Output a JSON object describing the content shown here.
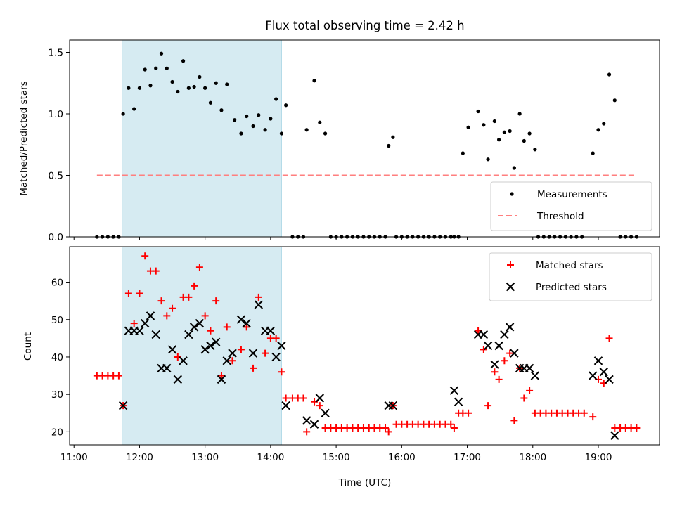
{
  "chart_data": [
    {
      "type": "scatter",
      "title": "Flux total observing time = 2.42 h",
      "xlabel": "",
      "ylabel": "Matched/Predicted stars",
      "xlim": [
        "10:56",
        "19:56"
      ],
      "ylim": [
        0,
        1.6
      ],
      "yticks": [
        "0.0",
        "0.5",
        "1.0",
        "1.5"
      ],
      "shaded_span": {
        "from": "11:44",
        "to": "14:10"
      },
      "legend_position": "lower right",
      "series": [
        {
          "name": "Measurements",
          "marker": "dot",
          "color": "#000000",
          "points": [
            [
              "11:21",
              0
            ],
            [
              "11:26",
              0
            ],
            [
              "11:31",
              0
            ],
            [
              "11:36",
              0
            ],
            [
              "11:41",
              0
            ],
            [
              "11:45",
              1.0
            ],
            [
              "11:50",
              1.21
            ],
            [
              "11:55",
              1.04
            ],
            [
              "12:00",
              1.21
            ],
            [
              "12:05",
              1.36
            ],
            [
              "12:10",
              1.23
            ],
            [
              "12:15",
              1.37
            ],
            [
              "12:20",
              1.49
            ],
            [
              "12:25",
              1.37
            ],
            [
              "12:30",
              1.26
            ],
            [
              "12:35",
              1.18
            ],
            [
              "12:40",
              1.43
            ],
            [
              "12:45",
              1.21
            ],
            [
              "12:50",
              1.22
            ],
            [
              "12:55",
              1.3
            ],
            [
              "13:00",
              1.21
            ],
            [
              "13:05",
              1.09
            ],
            [
              "13:10",
              1.25
            ],
            [
              "13:15",
              1.03
            ],
            [
              "13:20",
              1.24
            ],
            [
              "13:27",
              0.95
            ],
            [
              "13:33",
              0.84
            ],
            [
              "13:38",
              0.98
            ],
            [
              "13:44",
              0.9
            ],
            [
              "13:49",
              0.99
            ],
            [
              "13:55",
              0.87
            ],
            [
              "14:00",
              0.96
            ],
            [
              "14:05",
              1.12
            ],
            [
              "14:10",
              0.84
            ],
            [
              "14:14",
              1.07
            ],
            [
              "14:20",
              0
            ],
            [
              "14:25",
              0
            ],
            [
              "14:30",
              0
            ],
            [
              "14:33",
              0.87
            ],
            [
              "14:40",
              1.27
            ],
            [
              "14:45",
              0.93
            ],
            [
              "14:50",
              0.84
            ],
            [
              "14:55",
              0
            ],
            [
              "15:00",
              0
            ],
            [
              "15:05",
              0
            ],
            [
              "15:10",
              0
            ],
            [
              "15:15",
              0
            ],
            [
              "15:20",
              0
            ],
            [
              "15:25",
              0
            ],
            [
              "15:30",
              0
            ],
            [
              "15:35",
              0
            ],
            [
              "15:40",
              0
            ],
            [
              "15:45",
              0
            ],
            [
              "15:48",
              0.74
            ],
            [
              "15:52",
              0.81
            ],
            [
              "15:55",
              0
            ],
            [
              "16:00",
              0
            ],
            [
              "16:05",
              0
            ],
            [
              "16:10",
              0
            ],
            [
              "16:15",
              0
            ],
            [
              "16:20",
              0
            ],
            [
              "16:25",
              0
            ],
            [
              "16:30",
              0
            ],
            [
              "16:35",
              0
            ],
            [
              "16:40",
              0
            ],
            [
              "16:45",
              0
            ],
            [
              "16:48",
              0
            ],
            [
              "16:52",
              0
            ],
            [
              "16:56",
              0.68
            ],
            [
              "17:01",
              0.89
            ],
            [
              "17:10",
              1.02
            ],
            [
              "17:15",
              0.91
            ],
            [
              "17:19",
              0.63
            ],
            [
              "17:25",
              0.94
            ],
            [
              "17:29",
              0.79
            ],
            [
              "17:34",
              0.85
            ],
            [
              "17:39",
              0.86
            ],
            [
              "17:43",
              0.56
            ],
            [
              "17:48",
              1.0
            ],
            [
              "17:52",
              0.78
            ],
            [
              "17:57",
              0.84
            ],
            [
              "18:02",
              0.71
            ],
            [
              "18:05",
              0
            ],
            [
              "18:10",
              0
            ],
            [
              "18:15",
              0
            ],
            [
              "18:20",
              0
            ],
            [
              "18:25",
              0
            ],
            [
              "18:30",
              0
            ],
            [
              "18:35",
              0
            ],
            [
              "18:40",
              0
            ],
            [
              "18:45",
              0
            ],
            [
              "18:55",
              0.68
            ],
            [
              "19:00",
              0.87
            ],
            [
              "19:05",
              0.92
            ],
            [
              "19:10",
              1.32
            ],
            [
              "19:15",
              1.11
            ],
            [
              "19:20",
              0
            ],
            [
              "19:25",
              0
            ],
            [
              "19:30",
              0
            ],
            [
              "19:35",
              0
            ]
          ]
        },
        {
          "name": "Threshold",
          "style": "dashed",
          "color": "#ff7f7f",
          "points": [
            [
              "11:21",
              0.5
            ],
            [
              "19:35",
              0.5
            ]
          ]
        }
      ]
    },
    {
      "type": "scatter",
      "title": "",
      "xlabel": "Time (UTC)",
      "ylabel": "Count",
      "xlim": [
        "10:56",
        "19:56"
      ],
      "ylim": [
        16.5,
        69.5
      ],
      "yticks": [
        "20",
        "30",
        "40",
        "50",
        "60"
      ],
      "xticks": [
        "11:00",
        "12:00",
        "13:00",
        "14:00",
        "15:00",
        "16:00",
        "17:00",
        "18:00",
        "19:00"
      ],
      "shaded_span": {
        "from": "11:44",
        "to": "14:10"
      },
      "legend_position": "upper right",
      "series": [
        {
          "name": "Matched stars",
          "marker": "plus",
          "color": "#ff0000",
          "points": [
            [
              "11:21",
              35
            ],
            [
              "11:26",
              35
            ],
            [
              "11:31",
              35
            ],
            [
              "11:36",
              35
            ],
            [
              "11:41",
              35
            ],
            [
              "11:45",
              27
            ],
            [
              "11:50",
              57
            ],
            [
              "11:55",
              49
            ],
            [
              "12:00",
              57
            ],
            [
              "12:05",
              67
            ],
            [
              "12:10",
              63
            ],
            [
              "12:15",
              63
            ],
            [
              "12:20",
              55
            ],
            [
              "12:25",
              51
            ],
            [
              "12:30",
              53
            ],
            [
              "12:35",
              40
            ],
            [
              "12:40",
              56
            ],
            [
              "12:45",
              56
            ],
            [
              "12:50",
              59
            ],
            [
              "12:55",
              64
            ],
            [
              "13:00",
              51
            ],
            [
              "13:05",
              47
            ],
            [
              "13:10",
              55
            ],
            [
              "13:15",
              35
            ],
            [
              "13:20",
              48
            ],
            [
              "13:25",
              39
            ],
            [
              "13:33",
              42
            ],
            [
              "13:38",
              48
            ],
            [
              "13:44",
              37
            ],
            [
              "13:49",
              56
            ],
            [
              "13:55",
              41
            ],
            [
              "14:00",
              45
            ],
            [
              "14:05",
              45
            ],
            [
              "14:10",
              36
            ],
            [
              "14:14",
              29
            ],
            [
              "14:20",
              29
            ],
            [
              "14:25",
              29
            ],
            [
              "14:30",
              29
            ],
            [
              "14:33",
              20
            ],
            [
              "14:40",
              28
            ],
            [
              "14:45",
              27
            ],
            [
              "14:50",
              21
            ],
            [
              "14:55",
              21
            ],
            [
              "15:00",
              21
            ],
            [
              "15:05",
              21
            ],
            [
              "15:10",
              21
            ],
            [
              "15:15",
              21
            ],
            [
              "15:20",
              21
            ],
            [
              "15:25",
              21
            ],
            [
              "15:30",
              21
            ],
            [
              "15:35",
              21
            ],
            [
              "15:40",
              21
            ],
            [
              "15:45",
              21
            ],
            [
              "15:48",
              20
            ],
            [
              "15:52",
              27
            ],
            [
              "15:55",
              22
            ],
            [
              "16:00",
              22
            ],
            [
              "16:05",
              22
            ],
            [
              "16:10",
              22
            ],
            [
              "16:15",
              22
            ],
            [
              "16:20",
              22
            ],
            [
              "16:25",
              22
            ],
            [
              "16:30",
              22
            ],
            [
              "16:35",
              22
            ],
            [
              "16:40",
              22
            ],
            [
              "16:45",
              22
            ],
            [
              "16:48",
              21
            ],
            [
              "16:52",
              25
            ],
            [
              "16:56",
              25
            ],
            [
              "17:01",
              25
            ],
            [
              "17:10",
              47
            ],
            [
              "17:15",
              42
            ],
            [
              "17:19",
              27
            ],
            [
              "17:25",
              36
            ],
            [
              "17:29",
              34
            ],
            [
              "17:34",
              39
            ],
            [
              "17:39",
              41
            ],
            [
              "17:43",
              23
            ],
            [
              "17:48",
              37
            ],
            [
              "17:52",
              29
            ],
            [
              "17:57",
              31
            ],
            [
              "18:02",
              25
            ],
            [
              "18:07",
              25
            ],
            [
              "18:12",
              25
            ],
            [
              "18:17",
              25
            ],
            [
              "18:22",
              25
            ],
            [
              "18:27",
              25
            ],
            [
              "18:32",
              25
            ],
            [
              "18:37",
              25
            ],
            [
              "18:42",
              25
            ],
            [
              "18:47",
              25
            ],
            [
              "18:55",
              24
            ],
            [
              "19:00",
              34
            ],
            [
              "19:05",
              33
            ],
            [
              "19:10",
              45
            ],
            [
              "19:15",
              21
            ],
            [
              "19:20",
              21
            ],
            [
              "19:25",
              21
            ],
            [
              "19:30",
              21
            ],
            [
              "19:35",
              21
            ]
          ]
        },
        {
          "name": "Predicted stars",
          "marker": "x",
          "color": "#000000",
          "points": [
            [
              "11:45",
              27
            ],
            [
              "11:50",
              47
            ],
            [
              "11:55",
              47
            ],
            [
              "12:00",
              47
            ],
            [
              "12:05",
              49
            ],
            [
              "12:10",
              51
            ],
            [
              "12:15",
              46
            ],
            [
              "12:20",
              37
            ],
            [
              "12:25",
              37
            ],
            [
              "12:30",
              42
            ],
            [
              "12:35",
              34
            ],
            [
              "12:40",
              39
            ],
            [
              "12:45",
              46
            ],
            [
              "12:50",
              48
            ],
            [
              "12:55",
              49
            ],
            [
              "13:00",
              42
            ],
            [
              "13:05",
              43
            ],
            [
              "13:10",
              44
            ],
            [
              "13:15",
              34
            ],
            [
              "13:20",
              39
            ],
            [
              "13:25",
              41
            ],
            [
              "13:33",
              50
            ],
            [
              "13:38",
              49
            ],
            [
              "13:44",
              41
            ],
            [
              "13:49",
              54
            ],
            [
              "13:55",
              47
            ],
            [
              "14:00",
              47
            ],
            [
              "14:05",
              40
            ],
            [
              "14:10",
              43
            ],
            [
              "14:14",
              27
            ],
            [
              "14:33",
              23
            ],
            [
              "14:40",
              22
            ],
            [
              "14:45",
              29
            ],
            [
              "14:50",
              25
            ],
            [
              "15:48",
              27
            ],
            [
              "15:52",
              27
            ],
            [
              "16:48",
              31
            ],
            [
              "16:52",
              28
            ],
            [
              "17:10",
              46
            ],
            [
              "17:15",
              46
            ],
            [
              "17:19",
              43
            ],
            [
              "17:25",
              38
            ],
            [
              "17:29",
              43
            ],
            [
              "17:34",
              46
            ],
            [
              "17:39",
              48
            ],
            [
              "17:43",
              41
            ],
            [
              "17:48",
              37
            ],
            [
              "17:52",
              37
            ],
            [
              "17:57",
              37
            ],
            [
              "18:02",
              35
            ],
            [
              "18:55",
              35
            ],
            [
              "19:00",
              39
            ],
            [
              "19:05",
              36
            ],
            [
              "19:10",
              34
            ],
            [
              "19:15",
              19
            ]
          ]
        }
      ]
    }
  ]
}
